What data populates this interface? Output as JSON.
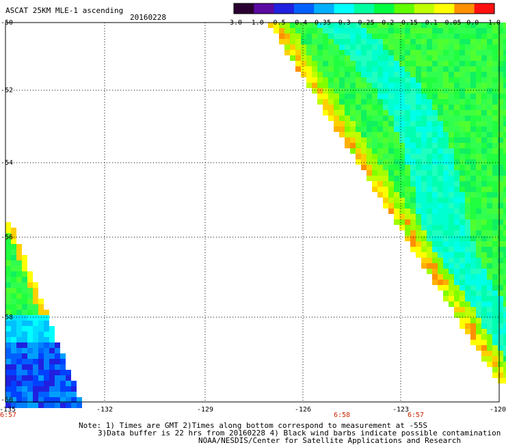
{
  "header": {
    "title": "ASCAT 25KM MLE-1 ascending",
    "date": "20160228"
  },
  "colorbar": {
    "labels": [
      "-3.0",
      "-1.0",
      "-0.5",
      "-0.4",
      "-0.35",
      "-0.3",
      "-0.25",
      "-0.2",
      "-0.15",
      "-0.1",
      "-0.05",
      "0.0",
      "1.0"
    ],
    "colors": [
      "#2a0030",
      "#5a0aa0",
      "#2020e0",
      "#0060ff",
      "#00b0ff",
      "#00ffff",
      "#00ffa0",
      "#00ff40",
      "#60ff00",
      "#c0ff00",
      "#ffff00",
      "#ff9000",
      "#ff1010"
    ]
  },
  "map": {
    "lat_labels": [
      "-50",
      "-52",
      "-54",
      "-56",
      "-58",
      "-60"
    ],
    "lon_labels": [
      "-135",
      "-132",
      "-129",
      "-126",
      "-123",
      "-120"
    ],
    "time_labels": [
      "6:57",
      "6:58",
      "6:57"
    ]
  },
  "notes": {
    "line1": "Note: 1) Times are GMT 2)Times along bottom correspond to measurement at -55S",
    "line2": "3)Data buffer is 22 hrs from 20160228 4) Black wind barbs indicate possible contamination",
    "line3": "NOAA/NESDIS/Center for Satellite Applications and Research"
  }
}
